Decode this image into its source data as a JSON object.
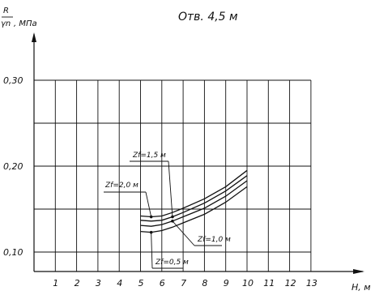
{
  "chart_data": {
    "type": "line",
    "title": "Отв. 4,5 м",
    "ylabel_numerator": "R",
    "ylabel_denominator": "γn",
    "ylabel_unit": ", МПа",
    "xlabel": "H, м",
    "x_ticks": [
      "1",
      "2",
      "3",
      "4",
      "5",
      "6",
      "7",
      "8",
      "9",
      "10",
      "11",
      "12",
      "13"
    ],
    "y_ticks": [
      {
        "value": 0.1,
        "label": "0,10"
      },
      {
        "value": 0.2,
        "label": "0,20"
      },
      {
        "value": 0.3,
        "label": "0,30"
      }
    ],
    "xlim": [
      0,
      13
    ],
    "ylim": [
      0.08,
      0.3
    ],
    "grid": true,
    "series": [
      {
        "name": "Zf=2,0 м",
        "x": [
          5,
          5.5,
          6,
          6.5,
          7,
          8,
          9,
          10
        ],
        "y": [
          0.142,
          0.141,
          0.142,
          0.146,
          0.151,
          0.162,
          0.176,
          0.195
        ]
      },
      {
        "name": "Zf=1,5 м",
        "x": [
          5,
          5.5,
          6,
          6.5,
          7,
          8,
          9,
          10
        ],
        "y": [
          0.137,
          0.136,
          0.137,
          0.141,
          0.146,
          0.157,
          0.171,
          0.189
        ]
      },
      {
        "name": "Zf=1,0 м",
        "x": [
          5,
          5.5,
          6,
          6.5,
          7,
          8,
          9,
          10
        ],
        "y": [
          0.131,
          0.13,
          0.132,
          0.136,
          0.141,
          0.151,
          0.165,
          0.183
        ]
      },
      {
        "name": "Zf=0,5 м",
        "x": [
          5,
          5.5,
          6,
          6.5,
          7,
          8,
          9,
          10
        ],
        "y": [
          0.124,
          0.123,
          0.125,
          0.129,
          0.134,
          0.144,
          0.158,
          0.176
        ]
      }
    ],
    "annotations": [
      {
        "text": "Zf=2,0 м",
        "series": 0,
        "at_x": 5.5
      },
      {
        "text": "Zf=1,5 м",
        "series": 1,
        "at_x": 6.5
      },
      {
        "text": "Zf=1,0 м",
        "series": 2,
        "at_x": 6.5
      },
      {
        "text": "Zf=0,5 м",
        "series": 3,
        "at_x": 5.5
      }
    ]
  }
}
